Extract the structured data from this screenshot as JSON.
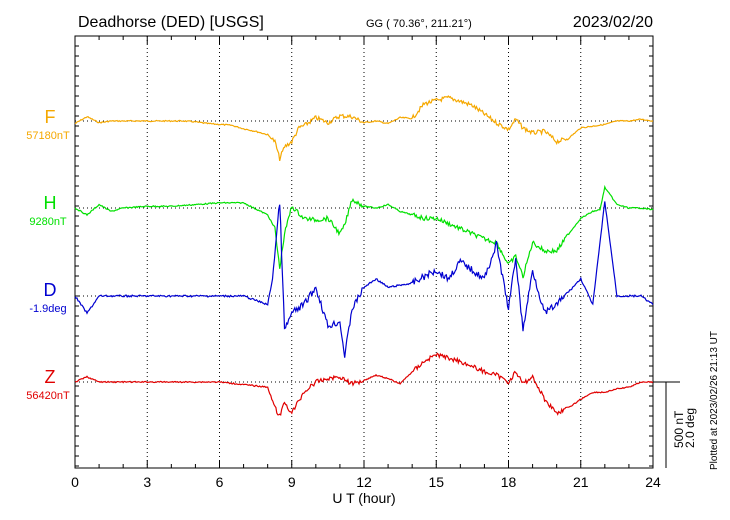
{
  "header": {
    "station": "Deadhorse (DED)  [USGS]",
    "coords": "GG ( 70.36°, 211.21°)",
    "date": "2023/02/20"
  },
  "footer": {
    "plotted": "Plotted at 2023/02/26 21:13 UT"
  },
  "colors": {
    "F": "#f5a800",
    "H": "#00e000",
    "D": "#0000d0",
    "Z": "#e00000",
    "axis": "#000000"
  },
  "chart_data": {
    "type": "line",
    "xlabel": "U T (hour)",
    "xlim": [
      0,
      24
    ],
    "x_ticks": [
      "0",
      "3",
      "6",
      "9",
      "12",
      "15",
      "18",
      "21",
      "24"
    ],
    "scale_bar": {
      "label1": "500 nT",
      "label2": "2.0 deg"
    },
    "series": [
      {
        "name": "F",
        "baseline_label": "57180nT",
        "x": [
          0,
          0.5,
          1,
          1.5,
          2,
          2.5,
          3,
          3.5,
          4,
          4.5,
          5,
          5.5,
          6,
          6.5,
          7,
          7.5,
          8,
          8.3,
          8.5,
          8.7,
          9,
          9.3,
          9.6,
          10,
          10.5,
          11,
          11.5,
          12,
          12.5,
          13,
          13.5,
          14,
          14.5,
          15,
          15.5,
          16,
          16.5,
          17,
          17.5,
          18,
          18.3,
          18.6,
          19,
          19.5,
          20,
          20.5,
          21,
          21.5,
          22,
          22.5,
          23,
          23.5,
          24
        ],
        "values": [
          -15,
          25,
          -10,
          0,
          0,
          0,
          0,
          0,
          0,
          0,
          -5,
          -15,
          -20,
          -25,
          -45,
          -60,
          -80,
          -120,
          -220,
          -150,
          -120,
          -40,
          -20,
          20,
          -10,
          30,
          25,
          -10,
          0,
          -15,
          20,
          15,
          100,
          120,
          135,
          115,
          90,
          40,
          -10,
          -50,
          10,
          -40,
          -70,
          -60,
          -120,
          -100,
          -40,
          -30,
          -20,
          0,
          0,
          10,
          0
        ]
      },
      {
        "name": "H",
        "baseline_label": "9280nT",
        "x": [
          0,
          0.5,
          1,
          1.5,
          2,
          3,
          4,
          5,
          6,
          7,
          8,
          8.3,
          8.5,
          8.7,
          9,
          9.5,
          10,
          10.5,
          11,
          11.2,
          11.5,
          12,
          12.5,
          13,
          13.5,
          14,
          14.5,
          15,
          15.5,
          16,
          16.5,
          17,
          17.5,
          18,
          18.3,
          18.6,
          19,
          19.5,
          20,
          20.5,
          21,
          21.5,
          21.8,
          22,
          22.5,
          23,
          23.5,
          24
        ],
        "values": [
          0,
          -40,
          20,
          -20,
          0,
          10,
          10,
          20,
          30,
          30,
          -40,
          -120,
          -350,
          -150,
          10,
          -60,
          -70,
          -60,
          -150,
          -100,
          50,
          10,
          0,
          20,
          -20,
          -40,
          -60,
          -60,
          -90,
          -120,
          -150,
          -180,
          -200,
          -330,
          -280,
          -400,
          -200,
          -250,
          -250,
          -150,
          -60,
          -20,
          -10,
          120,
          20,
          0,
          0,
          -10
        ]
      },
      {
        "name": "D",
        "baseline_label": "-1.9deg",
        "x": [
          0,
          0.5,
          1,
          2,
          3,
          4,
          5,
          6,
          7,
          8,
          8.2,
          8.5,
          8.7,
          9,
          9.5,
          10,
          10.5,
          11,
          11.2,
          11.5,
          12,
          12.5,
          13,
          14,
          15,
          15.5,
          16,
          16.5,
          17,
          17.5,
          18,
          18.3,
          18.6,
          19,
          19.5,
          20,
          21,
          21.5,
          22,
          22.5,
          23,
          23.5,
          24
        ],
        "values": [
          0,
          -0.4,
          0,
          0,
          0,
          0,
          0,
          0,
          0,
          -0.2,
          0.4,
          2.2,
          -0.8,
          -0.4,
          -0.2,
          0.2,
          -0.7,
          -0.6,
          -1.4,
          -0.3,
          0.2,
          0.4,
          0.2,
          0.3,
          0.6,
          0.4,
          0.8,
          0.6,
          0.4,
          1.2,
          -0.3,
          0.9,
          -0.8,
          0.6,
          -0.4,
          -0.2,
          0.4,
          -0.2,
          2.2,
          0,
          0,
          0,
          -0.2
        ]
      },
      {
        "name": "Z",
        "baseline_label": "56420nT",
        "x": [
          0,
          0.5,
          1,
          2,
          3,
          4,
          5,
          6,
          7,
          8,
          8.3,
          8.5,
          8.7,
          9,
          9.5,
          10,
          10.5,
          11,
          11.5,
          12,
          12.5,
          13,
          13.5,
          14,
          14.5,
          15,
          15.5,
          16,
          16.5,
          17,
          17.5,
          18,
          18.3,
          18.6,
          19,
          19.5,
          20,
          20.5,
          21,
          21.5,
          22,
          22.5,
          23,
          23.5,
          24
        ],
        "values": [
          0,
          30,
          0,
          0,
          0,
          0,
          0,
          0,
          -15,
          -30,
          -150,
          -200,
          -120,
          -180,
          -60,
          0,
          20,
          30,
          -10,
          10,
          40,
          20,
          -10,
          60,
          120,
          160,
          140,
          120,
          90,
          60,
          40,
          0,
          60,
          -10,
          30,
          -100,
          -180,
          -150,
          -100,
          -60,
          -60,
          -40,
          -30,
          0,
          0
        ]
      }
    ]
  }
}
